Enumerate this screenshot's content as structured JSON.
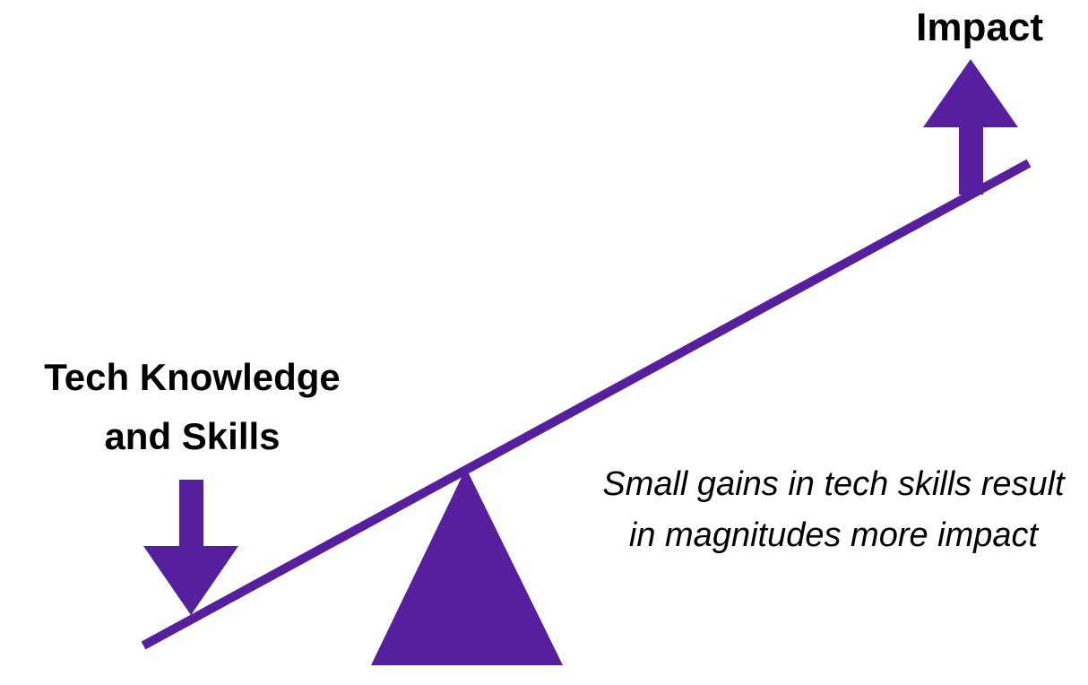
{
  "labels": {
    "impact": "Impact",
    "tech_line1": "Tech Knowledge",
    "tech_line2": "and Skills"
  },
  "caption": "Small gains in tech skills result in magnitudes more impact",
  "colors": {
    "accent": "#561f9e",
    "text": "#000000",
    "background": "#ffffff"
  },
  "icons": {
    "up_arrow": "arrow-up-icon",
    "down_arrow": "arrow-down-icon",
    "fulcrum": "triangle-fulcrum"
  }
}
